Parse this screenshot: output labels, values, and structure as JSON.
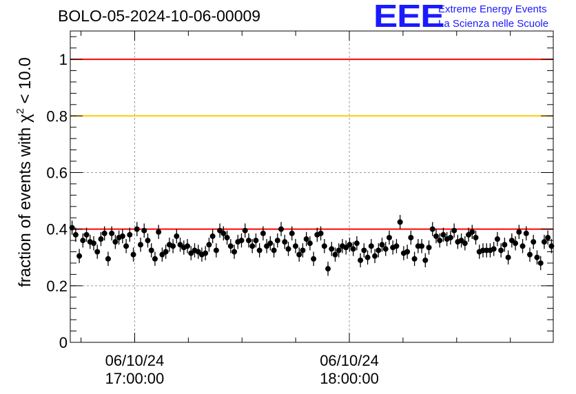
{
  "header": {
    "title": "BOLO-05-2024-10-06-00009"
  },
  "logo": {
    "letters": "EEE",
    "line1": "Extreme Energy Events",
    "line2": "La Scienza nelle Scuole",
    "color": "#1a1aff"
  },
  "chart_data": {
    "type": "scatter",
    "title": "BOLO-05-2024-10-06-00009",
    "xlabel": "",
    "ylabel": "fraction of events with χ² < 10.0",
    "ylabel_parts": {
      "pre": "fraction of events with χ",
      "sup": "2",
      "post": " < 10.0"
    },
    "ylim": [
      0,
      1.1
    ],
    "yticks": [
      0,
      0.2,
      0.4,
      0.6,
      0.8,
      1
    ],
    "ytick_labels": [
      "0",
      "0.2",
      "0.4",
      "0.6",
      "0.8",
      "1"
    ],
    "xlim_minutes": [
      16.7,
      18.95
    ],
    "xticks": [
      {
        "date": "06/10/24",
        "time": "17:00:00",
        "minute_hours": 17.0
      },
      {
        "date": "06/10/24",
        "time": "18:00:00",
        "minute_hours": 18.0
      }
    ],
    "grid": true,
    "reference_lines": [
      {
        "y": 1.0,
        "color": "#ff0000"
      },
      {
        "y": 0.8,
        "color": "#ffcc00"
      },
      {
        "y": 0.4,
        "color": "#ff0000"
      }
    ],
    "marker_color": "#000000",
    "y_error": 0.025,
    "series": [
      {
        "x_start_hours": 16.7,
        "x_end_hours": 18.95,
        "values": [
          0.405,
          0.38,
          0.305,
          0.36,
          0.38,
          0.355,
          0.35,
          0.32,
          0.365,
          0.385,
          0.295,
          0.385,
          0.355,
          0.37,
          0.375,
          0.34,
          0.38,
          0.31,
          0.4,
          0.345,
          0.395,
          0.36,
          0.325,
          0.295,
          0.39,
          0.31,
          0.32,
          0.345,
          0.34,
          0.375,
          0.345,
          0.335,
          0.34,
          0.315,
          0.325,
          0.32,
          0.31,
          0.315,
          0.345,
          0.375,
          0.325,
          0.395,
          0.385,
          0.37,
          0.34,
          0.32,
          0.355,
          0.36,
          0.395,
          0.36,
          0.34,
          0.36,
          0.325,
          0.385,
          0.34,
          0.35,
          0.325,
          0.36,
          0.4,
          0.355,
          0.33,
          0.385,
          0.34,
          0.31,
          0.325,
          0.365,
          0.35,
          0.295,
          0.38,
          0.385,
          0.34,
          0.26,
          0.33,
          0.31,
          0.325,
          0.34,
          0.335,
          0.345,
          0.33,
          0.35,
          0.29,
          0.325,
          0.3,
          0.34,
          0.305,
          0.325,
          0.345,
          0.33,
          0.37,
          0.335,
          0.34,
          0.425,
          0.315,
          0.32,
          0.37,
          0.295,
          0.34,
          0.34,
          0.29,
          0.335,
          0.4,
          0.375,
          0.36,
          0.38,
          0.365,
          0.37,
          0.395,
          0.355,
          0.36,
          0.35,
          0.38,
          0.39,
          0.37,
          0.32,
          0.325,
          0.325,
          0.325,
          0.33,
          0.365,
          0.325,
          0.345,
          0.3,
          0.36,
          0.35,
          0.39,
          0.34,
          0.385,
          0.31,
          0.355,
          0.3,
          0.28,
          0.355,
          0.37,
          0.34
        ]
      }
    ]
  }
}
